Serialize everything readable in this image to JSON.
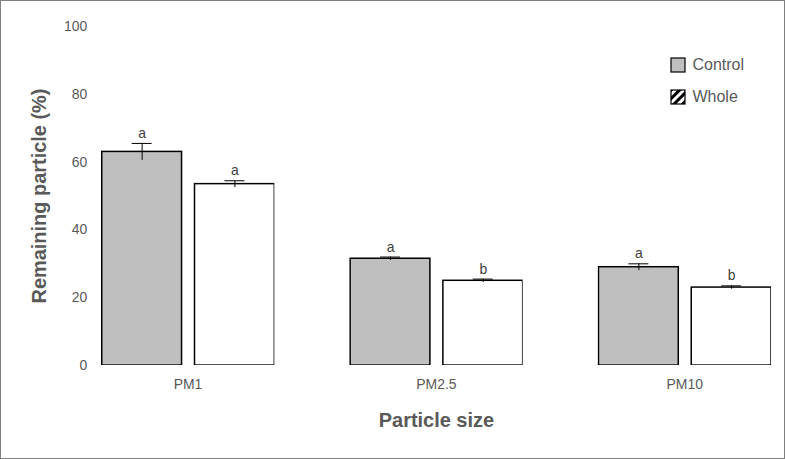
{
  "chart_data": {
    "type": "bar",
    "x_label": "Particle size",
    "y_label": "Remaining particle (%)",
    "categories": [
      "PM1",
      "PM2.5",
      "PM10"
    ],
    "series": [
      {
        "name": "Control",
        "color": "#bfbfbf",
        "values": [
          63,
          31.5,
          29
        ],
        "errors": [
          2.5,
          0.5,
          1
        ],
        "letters": [
          "a",
          "a",
          "a"
        ]
      },
      {
        "name": "Whole",
        "color": "#000000",
        "values": [
          53.5,
          25,
          23
        ],
        "errors": [
          1,
          0.5,
          0.5
        ],
        "letters": [
          "a",
          "b",
          "b"
        ]
      }
    ],
    "ylim": [
      0,
      100
    ],
    "yticks": [
      0,
      20,
      40,
      60,
      80,
      100
    ],
    "grid": false,
    "legend": "top-right"
  }
}
